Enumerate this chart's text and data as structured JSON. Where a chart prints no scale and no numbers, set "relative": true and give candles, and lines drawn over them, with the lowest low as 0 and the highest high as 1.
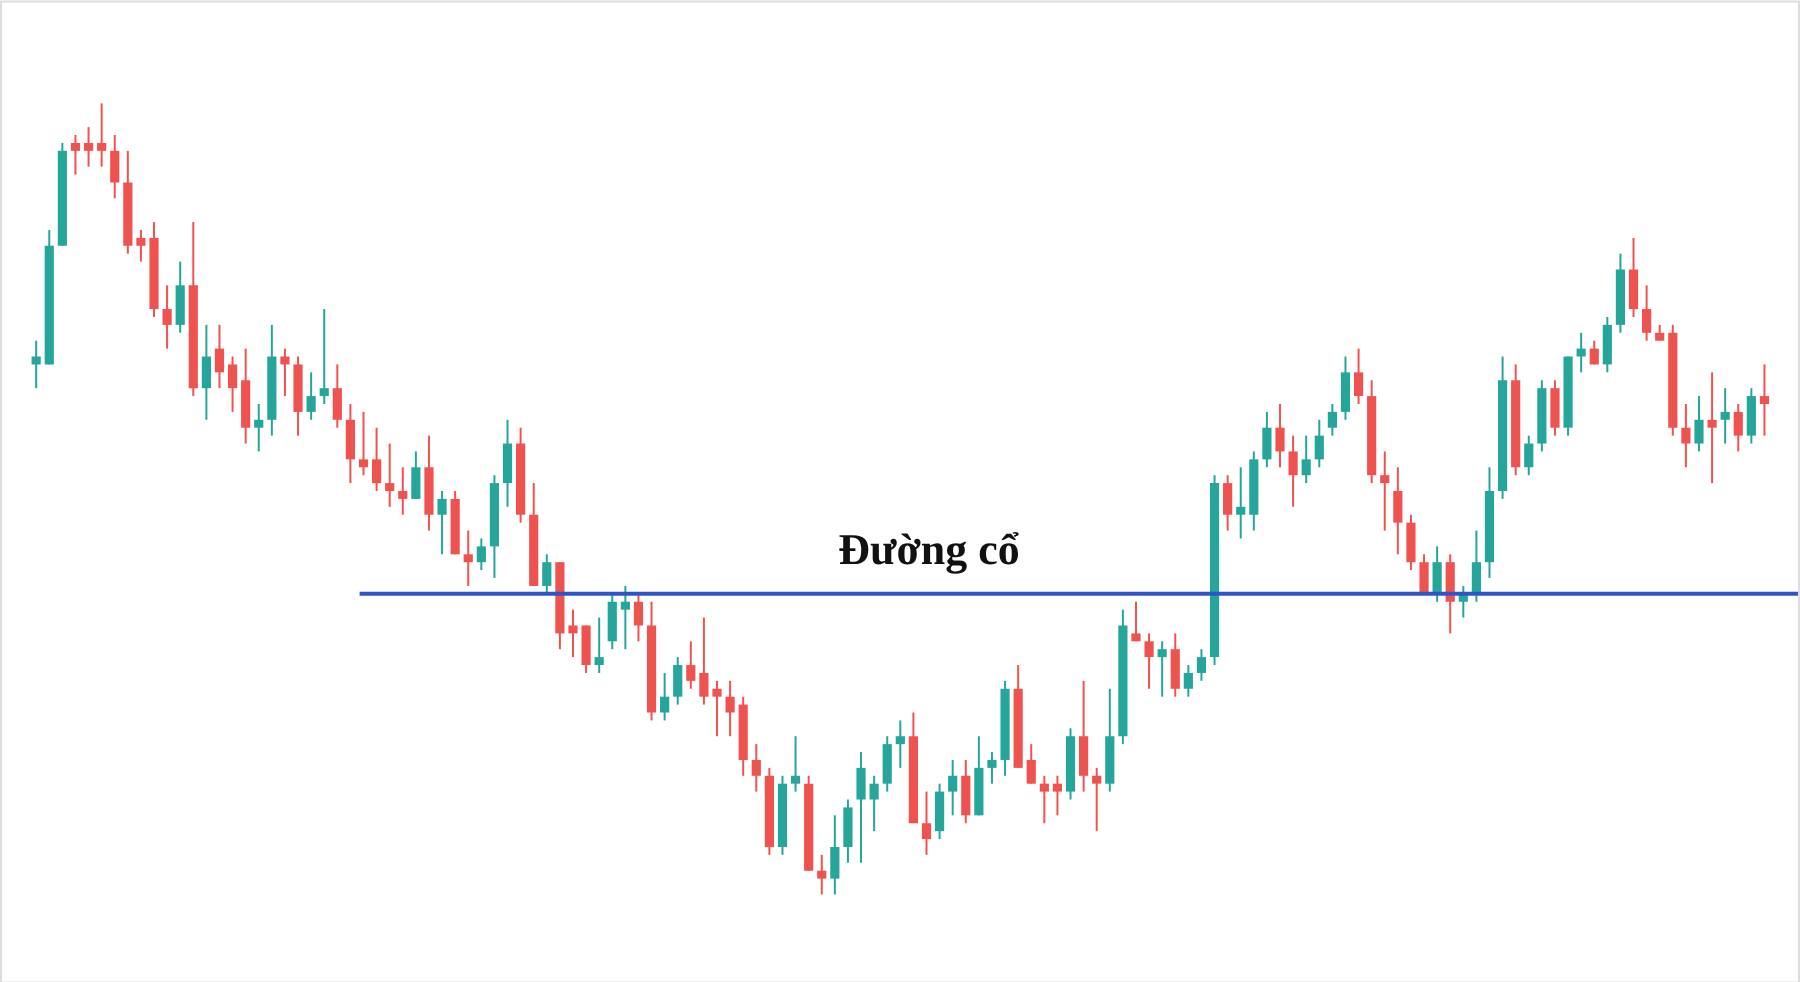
{
  "chart_data": {
    "type": "candlestick",
    "relative": true,
    "categories": [
      null,
      null,
      null,
      null,
      null,
      null,
      null,
      null,
      null,
      null,
      null,
      null,
      null,
      null,
      null,
      null,
      null,
      null,
      null,
      null,
      null,
      null,
      null,
      null,
      null,
      null,
      null,
      null,
      null,
      null,
      null,
      null,
      null,
      null,
      null,
      null,
      null,
      null,
      null,
      null,
      null,
      null,
      null,
      null,
      null,
      null,
      null,
      null,
      null,
      null,
      null,
      null,
      null,
      null,
      null,
      null,
      null,
      null,
      null,
      null,
      null,
      null,
      null,
      null,
      null,
      null,
      null,
      null,
      null,
      null,
      null,
      null,
      null,
      null,
      null,
      null,
      null,
      null,
      null,
      null,
      null,
      null,
      null,
      null,
      null,
      null,
      null,
      null,
      null,
      null,
      null,
      null,
      null,
      null,
      null,
      null,
      null,
      null,
      null,
      null,
      null,
      null,
      null,
      null,
      null,
      null,
      null,
      null,
      null,
      null,
      null,
      null,
      null,
      null,
      null,
      null,
      null,
      null,
      null,
      null,
      null,
      null,
      null,
      null,
      null,
      null,
      null,
      null,
      null,
      null,
      null,
      null,
      null
    ],
    "ohlc": [
      [
        0.67,
        0.7,
        0.64,
        0.68
      ],
      [
        0.67,
        0.84,
        0.67,
        0.82
      ],
      [
        0.82,
        0.95,
        0.82,
        0.94
      ],
      [
        0.95,
        0.96,
        0.91,
        0.94
      ],
      [
        0.95,
        0.97,
        0.92,
        0.94
      ],
      [
        0.95,
        1.0,
        0.92,
        0.94
      ],
      [
        0.94,
        0.96,
        0.88,
        0.9
      ],
      [
        0.9,
        0.94,
        0.81,
        0.82
      ],
      [
        0.83,
        0.84,
        0.8,
        0.82
      ],
      [
        0.83,
        0.85,
        0.73,
        0.74
      ],
      [
        0.74,
        0.77,
        0.69,
        0.72
      ],
      [
        0.72,
        0.8,
        0.71,
        0.77
      ],
      [
        0.77,
        0.85,
        0.63,
        0.64
      ],
      [
        0.64,
        0.72,
        0.6,
        0.68
      ],
      [
        0.69,
        0.72,
        0.64,
        0.66
      ],
      [
        0.67,
        0.68,
        0.61,
        0.64
      ],
      [
        0.65,
        0.69,
        0.57,
        0.59
      ],
      [
        0.59,
        0.62,
        0.56,
        0.6
      ],
      [
        0.6,
        0.72,
        0.58,
        0.68
      ],
      [
        0.68,
        0.69,
        0.63,
        0.67
      ],
      [
        0.67,
        0.68,
        0.58,
        0.61
      ],
      [
        0.61,
        0.66,
        0.6,
        0.63
      ],
      [
        0.63,
        0.74,
        0.62,
        0.64
      ],
      [
        0.64,
        0.67,
        0.59,
        0.6
      ],
      [
        0.6,
        0.62,
        0.52,
        0.55
      ],
      [
        0.55,
        0.61,
        0.53,
        0.54
      ],
      [
        0.55,
        0.59,
        0.51,
        0.52
      ],
      [
        0.52,
        0.57,
        0.49,
        0.51
      ],
      [
        0.51,
        0.54,
        0.48,
        0.5
      ],
      [
        0.5,
        0.56,
        0.5,
        0.54
      ],
      [
        0.54,
        0.58,
        0.46,
        0.48
      ],
      [
        0.48,
        0.51,
        0.43,
        0.5
      ],
      [
        0.5,
        0.51,
        0.43,
        0.43
      ],
      [
        0.43,
        0.46,
        0.39,
        0.42
      ],
      [
        0.42,
        0.45,
        0.41,
        0.44
      ],
      [
        0.44,
        0.53,
        0.4,
        0.52
      ],
      [
        0.52,
        0.6,
        0.49,
        0.57
      ],
      [
        0.57,
        0.59,
        0.47,
        0.48
      ],
      [
        0.48,
        0.52,
        0.39,
        0.39
      ],
      [
        0.39,
        0.43,
        0.38,
        0.42
      ],
      [
        0.42,
        0.42,
        0.31,
        0.33
      ],
      [
        0.34,
        0.36,
        0.3,
        0.33
      ],
      [
        0.34,
        0.34,
        0.28,
        0.29
      ],
      [
        0.29,
        0.35,
        0.28,
        0.3
      ],
      [
        0.32,
        0.38,
        0.31,
        0.37
      ],
      [
        0.36,
        0.39,
        0.31,
        0.37
      ],
      [
        0.37,
        0.38,
        0.32,
        0.34
      ],
      [
        0.34,
        0.37,
        0.22,
        0.23
      ],
      [
        0.23,
        0.28,
        0.22,
        0.25
      ],
      [
        0.25,
        0.3,
        0.24,
        0.29
      ],
      [
        0.29,
        0.32,
        0.26,
        0.27
      ],
      [
        0.28,
        0.35,
        0.24,
        0.25
      ],
      [
        0.26,
        0.27,
        0.2,
        0.25
      ],
      [
        0.25,
        0.27,
        0.2,
        0.23
      ],
      [
        0.24,
        0.25,
        0.15,
        0.17
      ],
      [
        0.17,
        0.19,
        0.13,
        0.15
      ],
      [
        0.15,
        0.16,
        0.05,
        0.06
      ],
      [
        0.06,
        0.15,
        0.05,
        0.14
      ],
      [
        0.14,
        0.2,
        0.13,
        0.15
      ],
      [
        0.14,
        0.15,
        0.03,
        0.03
      ],
      [
        0.03,
        0.05,
        0.0,
        0.02
      ],
      [
        0.02,
        0.1,
        0.0,
        0.06
      ],
      [
        0.06,
        0.12,
        0.04,
        0.11
      ],
      [
        0.12,
        0.18,
        0.04,
        0.16
      ],
      [
        0.12,
        0.15,
        0.08,
        0.14
      ],
      [
        0.14,
        0.2,
        0.13,
        0.19
      ],
      [
        0.19,
        0.22,
        0.16,
        0.2
      ],
      [
        0.2,
        0.23,
        0.09,
        0.09
      ],
      [
        0.09,
        0.13,
        0.05,
        0.07
      ],
      [
        0.08,
        0.14,
        0.07,
        0.13
      ],
      [
        0.13,
        0.17,
        0.1,
        0.15
      ],
      [
        0.15,
        0.17,
        0.09,
        0.1
      ],
      [
        0.1,
        0.2,
        0.1,
        0.16
      ],
      [
        0.16,
        0.18,
        0.14,
        0.17
      ],
      [
        0.17,
        0.27,
        0.15,
        0.26
      ],
      [
        0.26,
        0.29,
        0.16,
        0.16
      ],
      [
        0.17,
        0.19,
        0.14,
        0.14
      ],
      [
        0.14,
        0.15,
        0.09,
        0.13
      ],
      [
        0.14,
        0.15,
        0.1,
        0.13
      ],
      [
        0.13,
        0.21,
        0.12,
        0.2
      ],
      [
        0.2,
        0.27,
        0.13,
        0.15
      ],
      [
        0.15,
        0.16,
        0.08,
        0.14
      ],
      [
        0.14,
        0.26,
        0.13,
        0.2
      ],
      [
        0.2,
        0.36,
        0.19,
        0.34
      ],
      [
        0.33,
        0.37,
        0.32,
        0.32
      ],
      [
        0.32,
        0.33,
        0.26,
        0.3
      ],
      [
        0.3,
        0.32,
        0.25,
        0.31
      ],
      [
        0.31,
        0.33,
        0.25,
        0.26
      ],
      [
        0.26,
        0.29,
        0.25,
        0.28
      ],
      [
        0.28,
        0.31,
        0.27,
        0.3
      ],
      [
        0.3,
        0.53,
        0.29,
        0.52
      ],
      [
        0.52,
        0.53,
        0.46,
        0.48
      ],
      [
        0.48,
        0.54,
        0.45,
        0.49
      ],
      [
        0.48,
        0.56,
        0.46,
        0.55
      ],
      [
        0.55,
        0.61,
        0.54,
        0.59
      ],
      [
        0.59,
        0.62,
        0.54,
        0.56
      ],
      [
        0.56,
        0.58,
        0.49,
        0.53
      ],
      [
        0.53,
        0.58,
        0.52,
        0.55
      ],
      [
        0.55,
        0.6,
        0.54,
        0.58
      ],
      [
        0.59,
        0.62,
        0.58,
        0.61
      ],
      [
        0.61,
        0.68,
        0.6,
        0.66
      ],
      [
        0.66,
        0.69,
        0.62,
        0.63
      ],
      [
        0.63,
        0.65,
        0.52,
        0.53
      ],
      [
        0.53,
        0.56,
        0.46,
        0.52
      ],
      [
        0.51,
        0.54,
        0.43,
        0.47
      ],
      [
        0.47,
        0.48,
        0.41,
        0.42
      ],
      [
        0.42,
        0.43,
        0.38,
        0.38
      ],
      [
        0.38,
        0.44,
        0.37,
        0.42
      ],
      [
        0.42,
        0.43,
        0.33,
        0.37
      ],
      [
        0.37,
        0.39,
        0.35,
        0.38
      ],
      [
        0.38,
        0.46,
        0.37,
        0.42
      ],
      [
        0.42,
        0.54,
        0.4,
        0.51
      ],
      [
        0.51,
        0.68,
        0.5,
        0.65
      ],
      [
        0.65,
        0.67,
        0.53,
        0.54
      ],
      [
        0.54,
        0.58,
        0.53,
        0.57
      ],
      [
        0.57,
        0.65,
        0.56,
        0.64
      ],
      [
        0.64,
        0.65,
        0.58,
        0.59
      ],
      [
        0.59,
        0.68,
        0.58,
        0.68
      ],
      [
        0.68,
        0.71,
        0.66,
        0.69
      ],
      [
        0.69,
        0.7,
        0.67,
        0.67
      ],
      [
        0.67,
        0.73,
        0.66,
        0.72
      ],
      [
        0.72,
        0.81,
        0.71,
        0.79
      ],
      [
        0.79,
        0.83,
        0.73,
        0.74
      ],
      [
        0.74,
        0.77,
        0.7,
        0.71
      ],
      [
        0.71,
        0.72,
        0.7,
        0.7
      ],
      [
        0.71,
        0.72,
        0.58,
        0.59
      ],
      [
        0.59,
        0.62,
        0.54,
        0.57
      ],
      [
        0.57,
        0.63,
        0.56,
        0.6
      ],
      [
        0.6,
        0.66,
        0.52,
        0.59
      ],
      [
        0.6,
        0.64,
        0.57,
        0.61
      ],
      [
        0.61,
        0.62,
        0.56,
        0.58
      ],
      [
        0.58,
        0.64,
        0.57,
        0.63
      ],
      [
        0.63,
        0.67,
        0.58,
        0.62
      ]
    ],
    "colors": [
      "#26a69a",
      "#26a69a",
      "#26a69a",
      "#ef5350",
      "#ef5350",
      "#ef5350",
      "#ef5350",
      "#ef5350",
      "#ef5350",
      "#ef5350",
      "#ef5350",
      "#26a69a",
      "#ef5350",
      "#26a69a",
      "#ef5350",
      "#ef5350",
      "#ef5350",
      "#26a69a",
      "#26a69a",
      "#ef5350",
      "#ef5350",
      "#26a69a",
      "#26a69a",
      "#ef5350",
      "#ef5350",
      "#ef5350",
      "#ef5350",
      "#ef5350",
      "#ef5350",
      "#26a69a",
      "#ef5350",
      "#26a69a",
      "#ef5350",
      "#ef5350",
      "#26a69a",
      "#26a69a",
      "#26a69a",
      "#ef5350",
      "#ef5350",
      "#26a69a",
      "#ef5350",
      "#ef5350",
      "#ef5350",
      "#26a69a",
      "#26a69a",
      "#26a69a",
      "#ef5350",
      "#ef5350",
      "#26a69a",
      "#26a69a",
      "#ef5350",
      "#ef5350",
      "#ef5350",
      "#ef5350",
      "#ef5350",
      "#ef5350",
      "#ef5350",
      "#26a69a",
      "#26a69a",
      "#ef5350",
      "#ef5350",
      "#26a69a",
      "#26a69a",
      "#26a69a",
      "#26a69a",
      "#26a69a",
      "#26a69a",
      "#ef5350",
      "#ef5350",
      "#26a69a",
      "#26a69a",
      "#ef5350",
      "#26a69a",
      "#26a69a",
      "#26a69a",
      "#ef5350",
      "#ef5350",
      "#ef5350",
      "#ef5350",
      "#26a69a",
      "#ef5350",
      "#ef5350",
      "#26a69a",
      "#26a69a",
      "#ef5350",
      "#ef5350",
      "#26a69a",
      "#ef5350",
      "#26a69a",
      "#26a69a",
      "#26a69a",
      "#ef5350",
      "#26a69a",
      "#26a69a",
      "#26a69a",
      "#ef5350",
      "#ef5350",
      "#26a69a",
      "#26a69a",
      "#26a69a",
      "#26a69a",
      "#ef5350",
      "#ef5350",
      "#ef5350",
      "#ef5350",
      "#ef5350",
      "#ef5350",
      "#26a69a",
      "#ef5350",
      "#26a69a",
      "#26a69a",
      "#26a69a",
      "#26a69a",
      "#ef5350",
      "#26a69a",
      "#26a69a",
      "#ef5350",
      "#26a69a",
      "#26a69a",
      "#ef5350",
      "#26a69a",
      "#26a69a",
      "#ef5350",
      "#ef5350",
      "#ef5350",
      "#ef5350",
      "#ef5350",
      "#26a69a",
      "#ef5350",
      "#26a69a",
      "#ef5350",
      "#26a69a",
      "#ef5350"
    ],
    "ref_lines": [
      {
        "axis": "y",
        "value": 0.38,
        "label": "Đường cổ",
        "color": "#2f54c8",
        "line_style": "solid"
      }
    ]
  }
}
